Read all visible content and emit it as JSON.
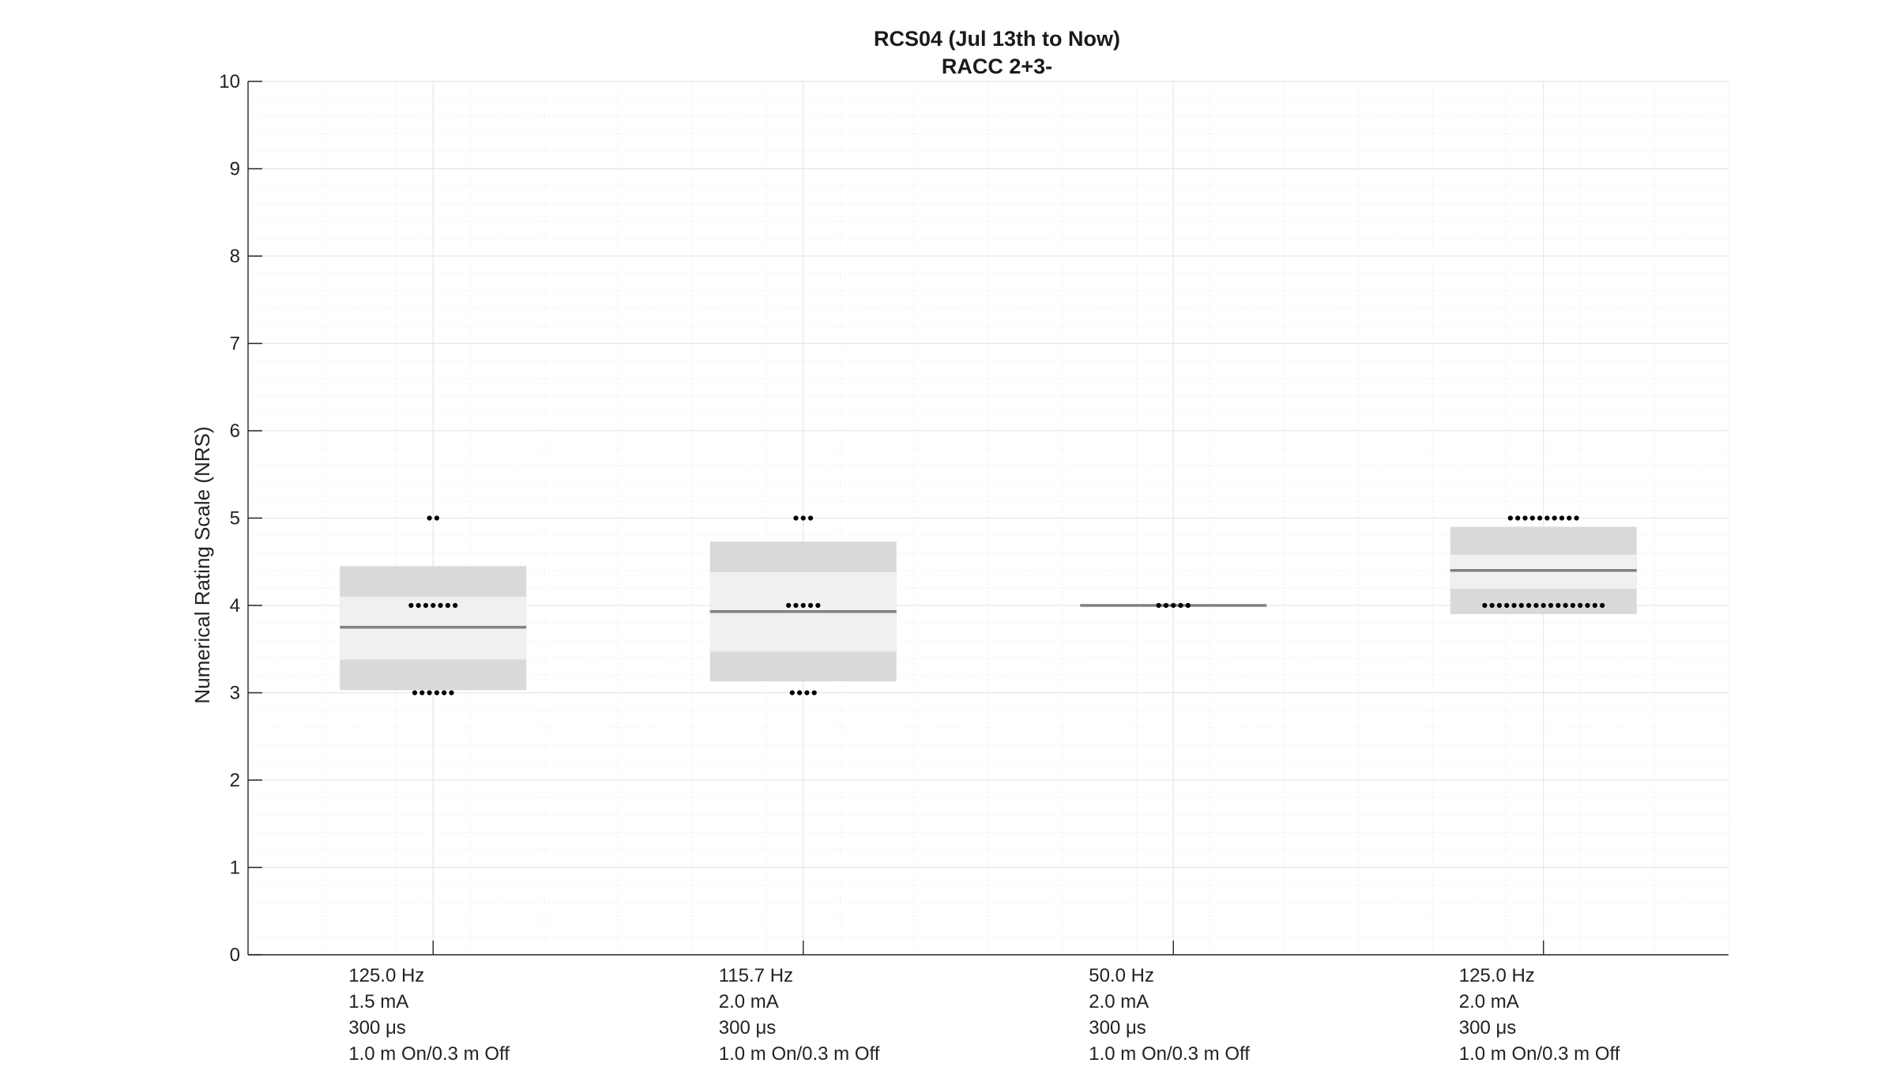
{
  "chart_data": {
    "type": "box",
    "title": "RCS04 (Jul 13th to Now)",
    "subtitle": "RACC 2+3-",
    "ylabel": "Numerical Rating Scale (NRS)",
    "xlabel": "",
    "ylim": [
      0,
      10
    ],
    "yticks": [
      0,
      1,
      2,
      3,
      4,
      5,
      6,
      7,
      8,
      9,
      10
    ],
    "grid": true,
    "minor_grid": true,
    "colors": {
      "box_outer": "#d9d9d9",
      "box_inner": "#f0f0f0",
      "median": "#808080",
      "point": "#000000",
      "axis": "#262626",
      "grid": "#e6e6e6"
    },
    "categories": [
      {
        "label_lines": [
          "125.0 Hz",
          "1.5 mA",
          "300 μs",
          "1.0 m On/0.3 m Off"
        ],
        "median": 3.75,
        "outer_range": [
          3.03,
          4.45
        ],
        "inner_range": [
          3.38,
          4.1
        ],
        "points": [
          {
            "value": 5,
            "count": 2
          },
          {
            "value": 4,
            "count": 7
          },
          {
            "value": 3,
            "count": 6
          }
        ]
      },
      {
        "label_lines": [
          "115.7 Hz",
          "2.0 mA",
          "300 μs",
          "1.0 m On/0.3 m Off"
        ],
        "median": 3.93,
        "outer_range": [
          3.13,
          4.73
        ],
        "inner_range": [
          3.47,
          4.38
        ],
        "points": [
          {
            "value": 5,
            "count": 3
          },
          {
            "value": 4,
            "count": 5
          },
          {
            "value": 3,
            "count": 4
          }
        ]
      },
      {
        "label_lines": [
          "50.0 Hz",
          "2.0 mA",
          "300 μs",
          "1.0 m On/0.3 m Off"
        ],
        "median": 4.0,
        "outer_range": [
          4.0,
          4.0
        ],
        "inner_range": [
          4.0,
          4.0
        ],
        "points": [
          {
            "value": 4,
            "count": 5
          }
        ]
      },
      {
        "label_lines": [
          "125.0 Hz",
          "2.0 mA",
          "300 μs",
          "1.0 m On/0.3 m Off"
        ],
        "median": 4.4,
        "outer_range": [
          3.9,
          4.9
        ],
        "inner_range": [
          4.19,
          4.58
        ],
        "points": [
          {
            "value": 5,
            "count": 10
          },
          {
            "value": 4,
            "count": 17
          }
        ]
      }
    ]
  }
}
